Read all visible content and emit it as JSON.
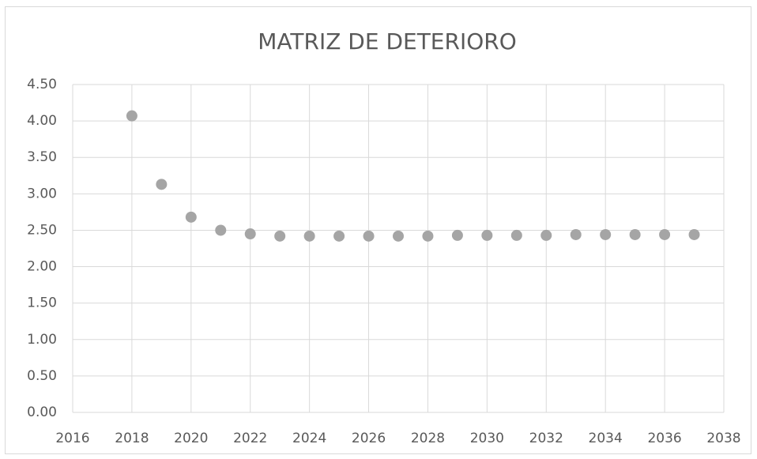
{
  "chart_data": {
    "type": "scatter",
    "title": "MATRIZ DE DETERIORO",
    "x": [
      2018,
      2019,
      2020,
      2021,
      2022,
      2023,
      2024,
      2025,
      2026,
      2027,
      2028,
      2029,
      2030,
      2031,
      2032,
      2033,
      2034,
      2035,
      2036,
      2037
    ],
    "values": [
      4.07,
      3.13,
      2.68,
      2.5,
      2.45,
      2.42,
      2.42,
      2.42,
      2.42,
      2.42,
      2.42,
      2.43,
      2.43,
      2.43,
      2.43,
      2.44,
      2.44,
      2.44,
      2.44,
      2.44
    ],
    "color": "#a5a5a5",
    "xlim": [
      2016,
      2038
    ],
    "xticks": [
      2016,
      2018,
      2020,
      2022,
      2024,
      2026,
      2028,
      2030,
      2032,
      2034,
      2036,
      2038
    ],
    "ylim": [
      0,
      4.5
    ],
    "yticks": [
      {
        "value": 0,
        "label": "0.00"
      },
      {
        "value": 0.5,
        "label": "0.50"
      },
      {
        "value": 1,
        "label": "1.00"
      },
      {
        "value": 1.5,
        "label": "1.50"
      },
      {
        "value": 2,
        "label": "2.00"
      },
      {
        "value": 2.5,
        "label": "2.50"
      },
      {
        "value": 3,
        "label": "3.00"
      },
      {
        "value": 3.5,
        "label": "3.50"
      },
      {
        "value": 4,
        "label": "4.00"
      },
      {
        "value": 4.5,
        "label": "4.50"
      }
    ],
    "grid": true
  }
}
